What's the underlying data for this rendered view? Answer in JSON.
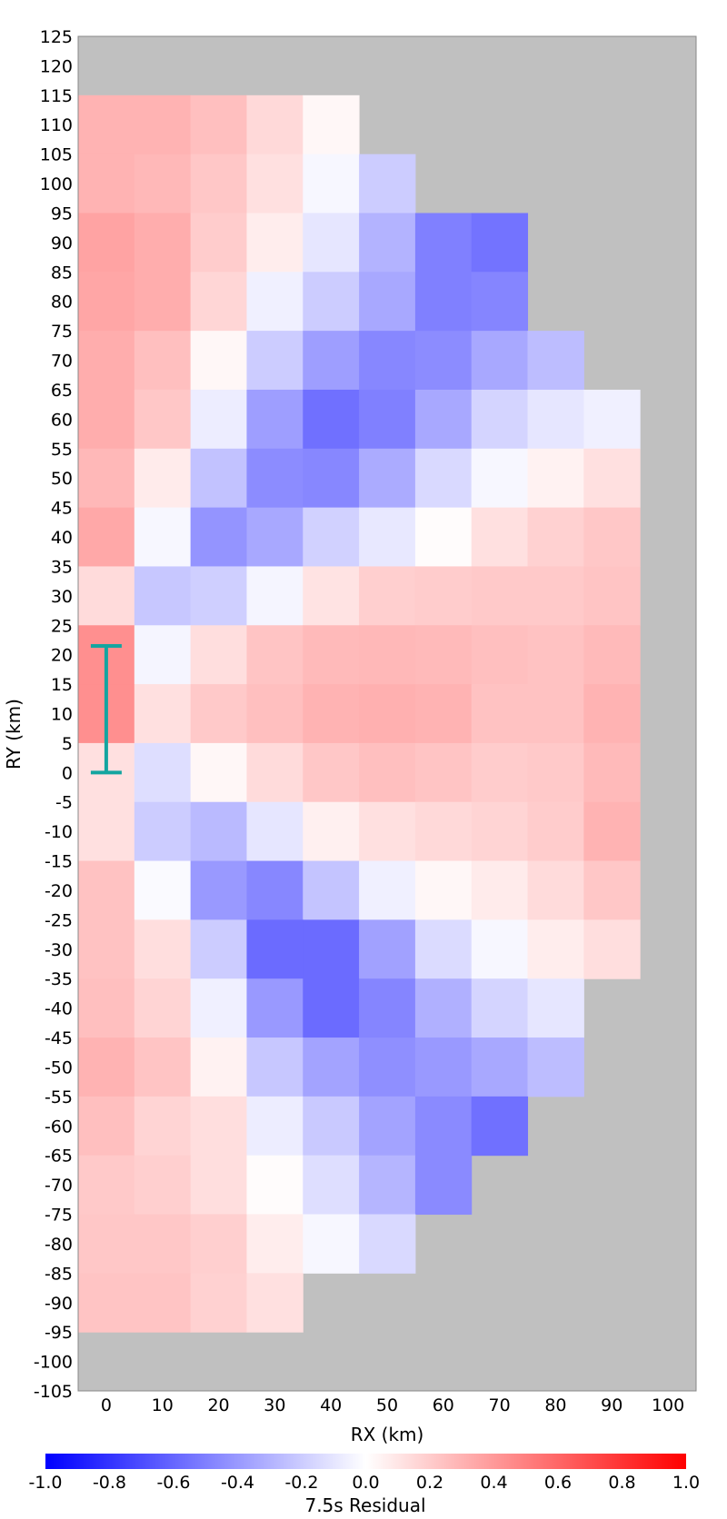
{
  "chart_data": {
    "type": "heatmap",
    "xlabel": "RX (km)",
    "ylabel": "RY (km)",
    "x_ticks": [
      0,
      10,
      20,
      30,
      40,
      50,
      60,
      70,
      80,
      90,
      100
    ],
    "y_ticks": [
      125,
      120,
      115,
      110,
      105,
      100,
      95,
      90,
      85,
      80,
      75,
      70,
      65,
      60,
      55,
      50,
      45,
      40,
      35,
      30,
      25,
      20,
      15,
      10,
      5,
      0,
      -5,
      -10,
      -15,
      -20,
      -25,
      -30,
      -35,
      -40,
      -45,
      -50,
      -55,
      -60,
      -65,
      -70,
      -75,
      -80,
      -85,
      -90,
      -95,
      -100,
      -105
    ],
    "xlim": [
      -5,
      105
    ],
    "ylim": [
      -105,
      125
    ],
    "cell_width": 10,
    "cell_height": 10,
    "no_data_color": "#c0c0c0",
    "cell_y_centers": [
      110,
      100,
      90,
      80,
      70,
      60,
      50,
      40,
      30,
      20,
      10,
      0,
      -10,
      -20,
      -30,
      -40,
      -50,
      -60,
      -70,
      -80,
      -90
    ],
    "cell_x_centers": [
      0,
      10,
      20,
      30,
      40,
      50,
      60,
      70,
      80,
      90
    ],
    "residuals": [
      [
        0.3,
        0.3,
        0.25,
        0.15,
        0.03,
        null,
        null,
        null,
        null,
        null
      ],
      [
        0.3,
        0.28,
        0.22,
        0.12,
        -0.03,
        -0.2,
        null,
        null,
        null,
        null
      ],
      [
        0.36,
        0.32,
        0.2,
        0.07,
        -0.1,
        -0.3,
        -0.5,
        -0.55,
        null,
        null
      ],
      [
        0.35,
        0.32,
        0.16,
        -0.06,
        -0.2,
        -0.34,
        -0.5,
        -0.48,
        null,
        null
      ],
      [
        0.32,
        0.25,
        0.03,
        -0.2,
        -0.38,
        -0.47,
        -0.45,
        -0.34,
        -0.26,
        null
      ],
      [
        0.32,
        0.22,
        -0.07,
        -0.38,
        -0.56,
        -0.5,
        -0.34,
        -0.17,
        -0.1,
        -0.06
      ],
      [
        0.28,
        0.08,
        -0.24,
        -0.45,
        -0.47,
        -0.33,
        -0.15,
        -0.03,
        0.05,
        0.12
      ],
      [
        0.34,
        -0.03,
        -0.42,
        -0.34,
        -0.18,
        -0.09,
        0.01,
        0.12,
        0.18,
        0.22
      ],
      [
        0.14,
        -0.22,
        -0.19,
        -0.04,
        0.11,
        0.19,
        0.2,
        0.21,
        0.21,
        0.23
      ],
      [
        0.44,
        -0.04,
        0.13,
        0.23,
        0.27,
        0.28,
        0.27,
        0.25,
        0.24,
        0.27
      ],
      [
        0.44,
        0.12,
        0.21,
        0.25,
        0.3,
        0.31,
        0.3,
        0.24,
        0.24,
        0.3
      ],
      [
        0.12,
        -0.13,
        0.03,
        0.14,
        0.22,
        0.25,
        0.23,
        0.2,
        0.21,
        0.27
      ],
      [
        0.12,
        -0.2,
        -0.27,
        -0.1,
        0.06,
        0.12,
        0.15,
        0.17,
        0.2,
        0.3
      ],
      [
        0.24,
        -0.02,
        -0.4,
        -0.47,
        -0.23,
        -0.06,
        0.03,
        0.08,
        0.14,
        0.22
      ],
      [
        0.24,
        0.13,
        -0.2,
        -0.58,
        -0.58,
        -0.37,
        -0.14,
        -0.03,
        0.07,
        0.13
      ],
      [
        0.25,
        0.17,
        -0.06,
        -0.4,
        -0.58,
        -0.48,
        -0.31,
        -0.17,
        -0.1,
        null
      ],
      [
        0.3,
        0.23,
        0.05,
        -0.22,
        -0.36,
        -0.44,
        -0.4,
        -0.34,
        -0.26,
        null
      ],
      [
        0.25,
        0.17,
        0.13,
        -0.07,
        -0.21,
        -0.36,
        -0.46,
        -0.56,
        null,
        null
      ],
      [
        0.21,
        0.19,
        0.13,
        0.01,
        -0.13,
        -0.29,
        -0.46,
        null,
        null,
        null
      ],
      [
        0.22,
        0.22,
        0.19,
        0.07,
        -0.03,
        -0.15,
        null,
        null,
        null,
        null
      ],
      [
        0.23,
        0.23,
        0.18,
        0.12,
        null,
        null,
        null,
        null,
        null,
        null
      ]
    ],
    "annotation": {
      "type": "error-bar",
      "x": 0,
      "y_low": 0,
      "y_high": 21.5,
      "color": "#14a5a0"
    },
    "colorbar": {
      "label": "7.5s Residual",
      "min": -1.0,
      "max": 1.0,
      "low_color": "#0000ff",
      "mid_color": "#ffffff",
      "high_color": "#ff0000",
      "ticks": [
        "-1.0",
        "-0.8",
        "-0.6",
        "-0.4",
        "-0.2",
        "0.0",
        "0.2",
        "0.4",
        "0.6",
        "0.8",
        "1.0"
      ]
    }
  }
}
